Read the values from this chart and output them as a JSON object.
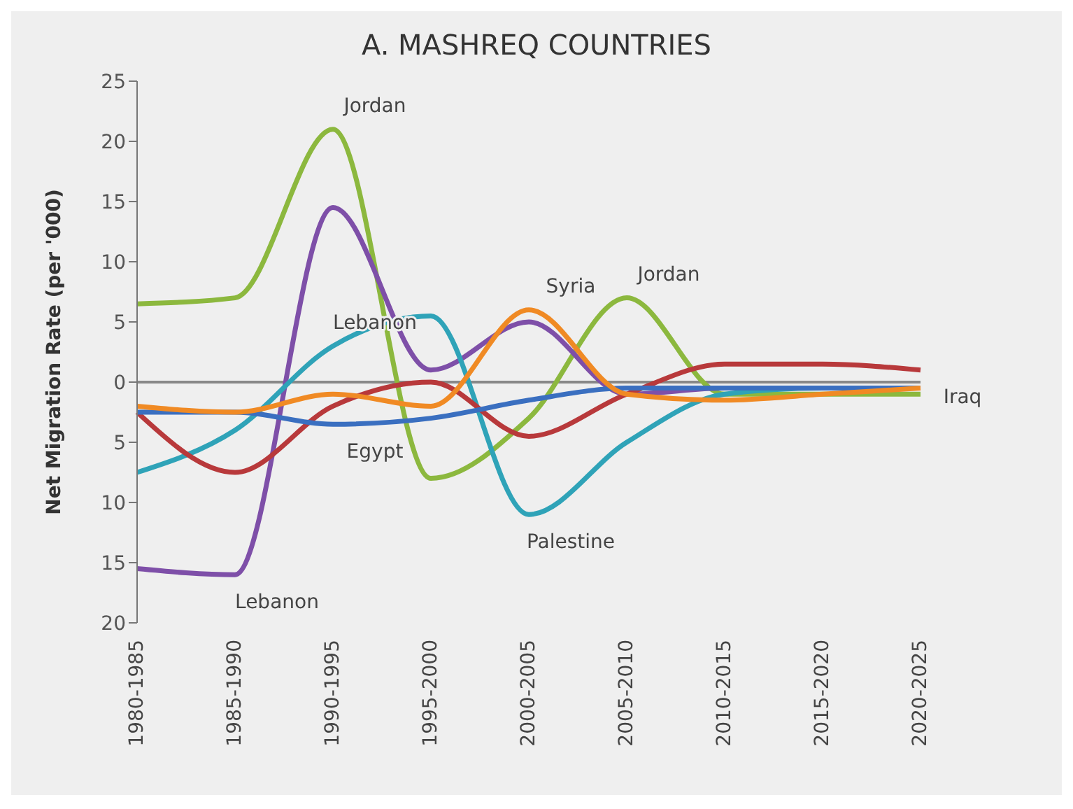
{
  "chart_data": {
    "type": "line",
    "title": "A. MASHREQ COUNTRIES",
    "ylabel": "Net Migration Rate (per '000)",
    "categories": [
      "1980-1985",
      "1985-1990",
      "1990-1995",
      "1995-2000",
      "2000-2005",
      "2005-2010",
      "2010-2015",
      "2015-2020",
      "2020-2025"
    ],
    "series": [
      {
        "color": "#8cb83e",
        "values": [
          6.5,
          7,
          21,
          -8,
          -3,
          7,
          -1,
          -1,
          -1
        ]
      },
      {
        "color": "#7e4fa8",
        "values": [
          -15.5,
          -16,
          14.5,
          1,
          5,
          -1,
          -0.5,
          -0.5,
          -0.5
        ]
      },
      {
        "color": "#2fa3b8",
        "values": [
          -7.5,
          -4,
          3,
          5.5,
          -11,
          -5,
          -1,
          -0.5,
          -0.5
        ]
      },
      {
        "color": "#b8393b",
        "values": [
          -2.5,
          -7.5,
          -2,
          0,
          -4.5,
          -1,
          1.5,
          1.5,
          1
        ]
      },
      {
        "color": "#3a6fc0",
        "values": [
          -2.5,
          -2.5,
          -3.5,
          -3,
          -1.5,
          -0.5,
          -0.5,
          -0.5,
          -0.5
        ]
      },
      {
        "color": "#f08a24",
        "values": [
          -2,
          -2.5,
          -1,
          -2,
          6,
          -1,
          -1.5,
          -1,
          -0.5
        ]
      }
    ],
    "ylim": [
      -20,
      25
    ],
    "yticks": [
      {
        "value": -20,
        "label": "20"
      },
      {
        "value": -15,
        "label": "15"
      },
      {
        "value": -10,
        "label": "10"
      },
      {
        "value": -5,
        "label": "5"
      },
      0,
      5,
      10,
      15,
      20,
      25
    ],
    "ref_lines": [
      {
        "axis": "y",
        "value": 0,
        "color": "#888888"
      }
    ],
    "annotations": [
      {
        "text": "Jordan",
        "x": "1990-1995",
        "y": 21
      },
      {
        "text": "Lebanon",
        "x": "1990-1995",
        "y": 3
      },
      {
        "text": "Egypt",
        "x": "1990-1995",
        "y": -3.5
      },
      {
        "text": "Lebanon",
        "x": "1985-1990",
        "y": -16
      },
      {
        "text": "Syria",
        "x": "2000-2005",
        "y": 6
      },
      {
        "text": "Jordan",
        "x": "2005-2010",
        "y": 7
      },
      {
        "text": "Palestine",
        "x": "2000-2005",
        "y": -11
      },
      {
        "text": "Iraq",
        "x": "2020-2025",
        "y": 1
      }
    ],
    "grid": false,
    "legend": false,
    "marker": "none",
    "line_style": "solid"
  }
}
